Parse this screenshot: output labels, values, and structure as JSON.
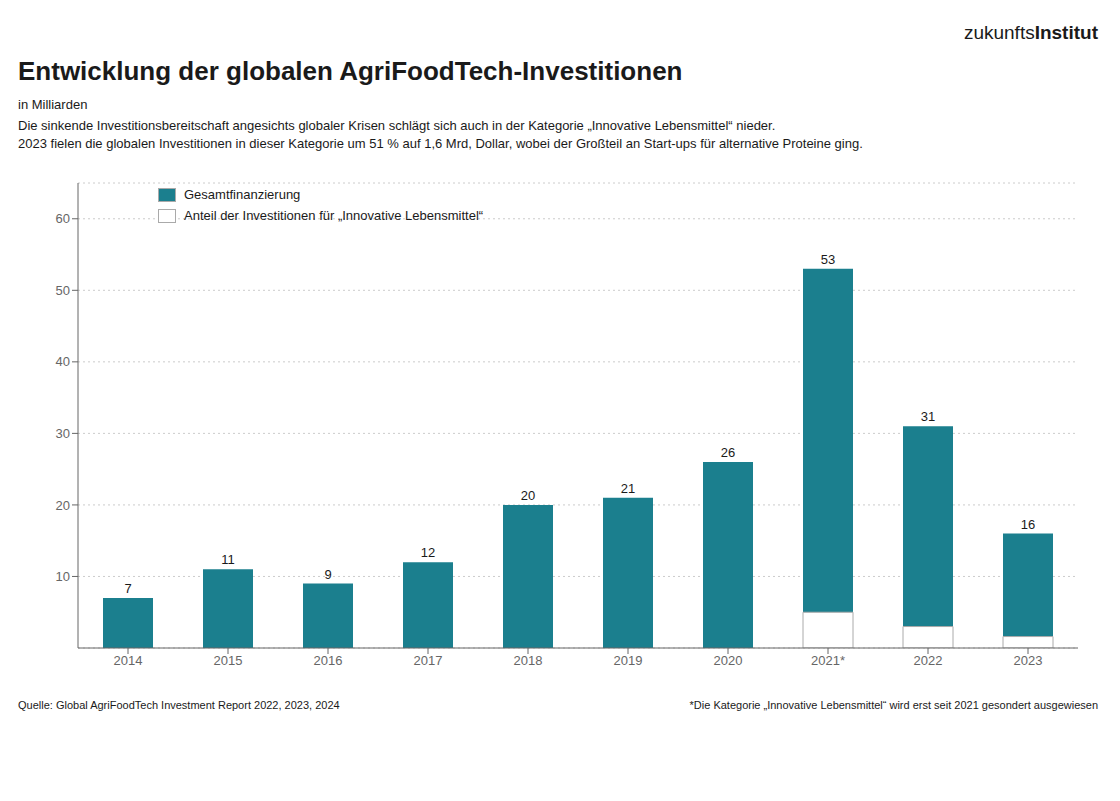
{
  "chart_data": {
    "type": "bar",
    "title": "Entwicklung der globalen AgriFoodTech-Investitionen",
    "subtitle": "in Milliarden",
    "annotations": [
      "zukunfts",
      "Institut",
      "Die sinkende Investitionsbereitschaft angesichts globaler Krisen schlägt sich auch in der Kategorie „Innovative Lebensmittel“ nieder.",
      "2023 fielen die globalen Investitionen in dieser Kategorie um 51 % auf 1,6 Mrd, Dollar, wobei der Großteil an Start-ups für alternative Proteine ging.",
      "Quelle: Global AgriFoodTech Investment Report 2022, 2023, 2024",
      "*Die Kategorie „Innovative Lebensmittel“ wird erst seit 2021 gesondert ausgewiesen"
    ],
    "categories": [
      "2014",
      "2015",
      "2016",
      "2017",
      "2018",
      "2019",
      "2020",
      "2021*",
      "2022",
      "2023"
    ],
    "series": [
      {
        "name": "Gesamtfinanzierung",
        "color": "#1b7f8e",
        "values": [
          7,
          11,
          9,
          12,
          20,
          21,
          26,
          53,
          31,
          16
        ],
        "data_labels": true
      },
      {
        "name": "Anteil der Investitionen für „Innovative Lebensmittel“",
        "color": "#ffffff",
        "values": [
          0,
          0,
          0,
          0,
          0,
          0,
          0,
          5,
          3,
          1.6
        ]
      }
    ],
    "ylim": [
      0,
      65
    ],
    "yticks": [
      10,
      20,
      30,
      40,
      50,
      60
    ],
    "grid": true,
    "legend": "upper left"
  }
}
